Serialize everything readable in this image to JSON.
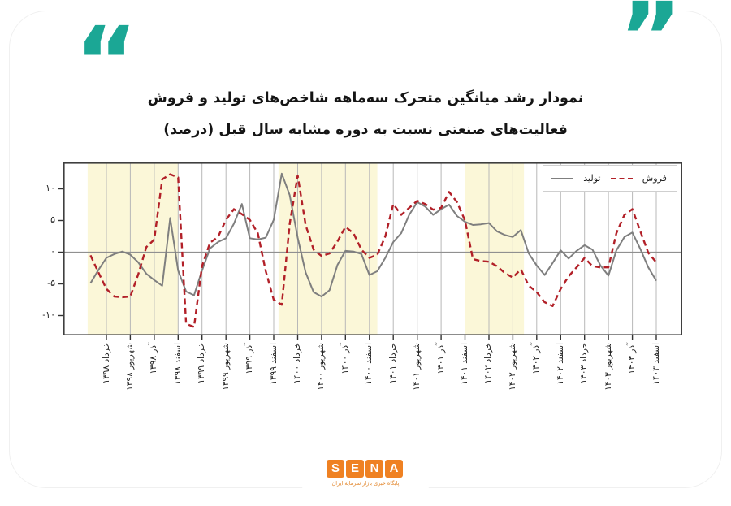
{
  "title": {
    "line1": "نمودار رشد میانگین متحرک سه‌ماهه شاخص‌های تولید و فروش",
    "line2": "فعالیت‌های صنعتی نسبت به دوره مشابه سال قبل (درصد)"
  },
  "colors": {
    "teal_quote": "#1ba795",
    "backing_gray": "#ececec",
    "production_gray": "#7f7f7f",
    "sales_red": "#b22028",
    "band_yellow": "#fbf7d8",
    "grid_gray": "#b8b8b8",
    "zero_line_gray": "#909090",
    "border_dark": "#3f3f3f",
    "logo_orange": "#ef8122"
  },
  "chart_data": {
    "type": "line",
    "title": "نمودار رشد میانگین متحرک سه‌ماهه شاخص‌های تولید و فروش فعالیت‌های صنعتی نسبت به دوره مشابه سال قبل (درصد)",
    "x_unit": "ماه (فروردین ۱۳۹۸ تا اسفند ۱۴۰۳)",
    "ylim": [
      -13.1,
      14.1
    ],
    "grid": true,
    "legend_position": "top-right",
    "band_color": "#fbf7d8",
    "tick_labels": [
      "خرداد ۱۳۹۸",
      "شهریور ۱۳۹۸",
      "آذر ۱۳۹۸",
      "اسفند ۱۳۹۸",
      "خرداد ۱۳۹۹",
      "شهریور ۱۳۹۹",
      "آذر ۱۳۹۹",
      "اسفند ۱۳۹۹",
      "خرداد ۱۴۰۰",
      "شهریور ۱۴۰۰",
      "آذر ۱۴۰۰",
      "اسفند ۱۴۰۰",
      "خرداد ۱۴۰۱",
      "شهریور ۱۴۰۱",
      "آذر ۱۴۰۱",
      "اسفند ۱۴۰۱",
      "خرداد ۱۴۰۲",
      "شهریور ۱۴۰۲",
      "آذر ۱۴۰۲",
      "اسفند ۱۴۰۲",
      "خرداد ۱۴۰۳",
      "شهریور ۱۴۰۳",
      "آذر ۱۴۰۳",
      "اسفند ۱۴۰۳"
    ],
    "y_ticks": [
      {
        "label": "۱۰",
        "value": 10
      },
      {
        "label": "۵",
        "value": 5
      },
      {
        "label": "۰",
        "value": 0
      },
      {
        "label": "-۵",
        "value": -5
      },
      {
        "label": "-۱۰",
        "value": -10
      }
    ],
    "highlight_bands": [
      {
        "from": -0.35,
        "to": 11.0
      },
      {
        "from": 23.6,
        "to": 36.0
      },
      {
        "from": 47.0,
        "to": 54.4
      }
    ],
    "series": [
      {
        "name": "تولید",
        "color": "#7f7f7f",
        "style": "solid",
        "values": [
          -4.9,
          -2.8,
          -0.9,
          -0.3,
          0.1,
          -0.4,
          -1.6,
          -3.4,
          -4.4,
          -5.3,
          5.4,
          -2.9,
          -6.2,
          -6.8,
          -2.9,
          0.6,
          1.6,
          2.2,
          4.5,
          7.6,
          2.2,
          2.0,
          2.3,
          5.1,
          12.4,
          9.0,
          2.3,
          -3.2,
          -6.3,
          -7.0,
          -6.0,
          -2.0,
          0.2,
          0.1,
          -0.3,
          -3.6,
          -3.0,
          -0.9,
          1.6,
          3.0,
          5.9,
          7.9,
          7.2,
          5.9,
          6.8,
          7.5,
          5.7,
          4.8,
          4.3,
          4.4,
          4.6,
          3.3,
          2.7,
          2.4,
          3.5,
          -0.2,
          -2.1,
          -3.6,
          -1.7,
          0.3,
          -1.0,
          0.2,
          1.1,
          0.4,
          -2.1,
          -3.7,
          0.3,
          2.4,
          3.1,
          0.5,
          -2.4,
          -4.5
        ]
      },
      {
        "name": "فروش",
        "color": "#b22028",
        "style": "dashed",
        "values": [
          -0.5,
          -3.2,
          -5.8,
          -7.0,
          -7.1,
          -7.0,
          -3.5,
          0.8,
          2.0,
          11.5,
          12.3,
          11.8,
          -11.3,
          -11.8,
          -2.2,
          1.5,
          2.4,
          5.1,
          6.8,
          6.0,
          5.1,
          3.0,
          -3.0,
          -7.5,
          -8.3,
          4.5,
          12.1,
          4.3,
          0.4,
          -0.6,
          -0.2,
          1.7,
          4.0,
          3.0,
          0.4,
          -0.9,
          -0.4,
          2.5,
          7.6,
          5.9,
          7.0,
          8.1,
          7.6,
          6.7,
          7.0,
          9.5,
          7.9,
          5.0,
          -1.1,
          -1.4,
          -1.5,
          -2.2,
          -3.3,
          -4.0,
          -2.7,
          -5.3,
          -6.3,
          -7.9,
          -8.5,
          -5.8,
          -3.8,
          -2.4,
          -0.9,
          -2.2,
          -2.4,
          -2.4,
          3.0,
          5.9,
          6.8,
          3.3,
          -0.1,
          -1.6
        ]
      }
    ]
  },
  "quotes": {
    "open": "“",
    "close": "”"
  },
  "footer": {
    "logo_letters": [
      "S",
      "E",
      "N",
      "A"
    ],
    "caption": "پایگاه خبری بازار سرمایه ایران"
  }
}
